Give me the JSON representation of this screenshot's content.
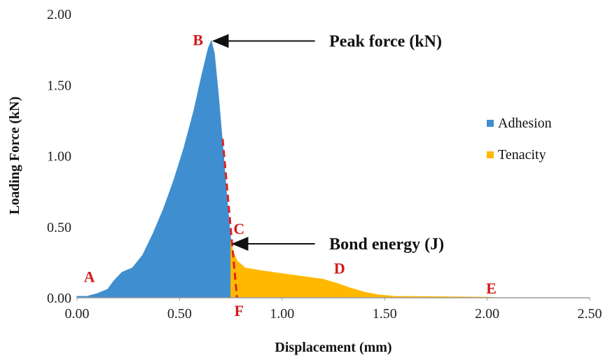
{
  "chart_data": {
    "type": "area",
    "title": "",
    "xlabel": "Displacement (mm)",
    "ylabel": "Loading Force (kN)",
    "xlim": [
      0,
      2.5
    ],
    "ylim": [
      0,
      2.0
    ],
    "x_ticks": [
      "0.00",
      "0.50",
      "1.00",
      "1.50",
      "2.00",
      "2.50"
    ],
    "y_ticks": [
      "0.00",
      "0.50",
      "1.00",
      "1.50",
      "2.00"
    ],
    "grid": false,
    "legend_position": "right",
    "series": [
      {
        "name": "Adhesion",
        "color": "#3f8fd0",
        "points": [
          [
            0.0,
            0.01
          ],
          [
            0.05,
            0.01
          ],
          [
            0.1,
            0.03
          ],
          [
            0.15,
            0.06
          ],
          [
            0.18,
            0.12
          ],
          [
            0.22,
            0.18
          ],
          [
            0.27,
            0.21
          ],
          [
            0.32,
            0.3
          ],
          [
            0.37,
            0.45
          ],
          [
            0.42,
            0.62
          ],
          [
            0.47,
            0.82
          ],
          [
            0.52,
            1.05
          ],
          [
            0.57,
            1.32
          ],
          [
            0.61,
            1.58
          ],
          [
            0.64,
            1.76
          ],
          [
            0.655,
            1.81
          ],
          [
            0.67,
            1.72
          ],
          [
            0.69,
            1.42
          ],
          [
            0.71,
            1.08
          ],
          [
            0.73,
            0.72
          ],
          [
            0.75,
            0.4
          ],
          [
            0.77,
            0.12
          ],
          [
            0.78,
            0.0
          ]
        ]
      },
      {
        "name": "Tenacity",
        "color": "#ffb800",
        "points": [
          [
            0.75,
            0.4
          ],
          [
            0.76,
            0.33
          ],
          [
            0.78,
            0.26
          ],
          [
            0.82,
            0.21
          ],
          [
            0.9,
            0.19
          ],
          [
            1.0,
            0.17
          ],
          [
            1.1,
            0.15
          ],
          [
            1.2,
            0.13
          ],
          [
            1.27,
            0.1
          ],
          [
            1.33,
            0.07
          ],
          [
            1.4,
            0.04
          ],
          [
            1.47,
            0.02
          ],
          [
            1.55,
            0.01
          ],
          [
            2.0,
            0.004
          ],
          [
            2.05,
            0.0
          ]
        ]
      }
    ],
    "bond_line": {
      "color": "#e02020",
      "points": [
        [
          0.71,
          1.12
        ],
        [
          0.78,
          0.0
        ]
      ]
    },
    "point_labels": [
      {
        "label": "A",
        "x": 0.06,
        "y": 0.15,
        "color": "#d31919"
      },
      {
        "label": "B",
        "x": 0.59,
        "y": 1.82,
        "color": "#d31919"
      },
      {
        "label": "C",
        "x": 0.79,
        "y": 0.49,
        "color": "#d31919"
      },
      {
        "label": "D",
        "x": 1.28,
        "y": 0.21,
        "color": "#d31919"
      },
      {
        "label": "E",
        "x": 2.02,
        "y": 0.07,
        "color": "#d31919"
      },
      {
        "label": "F",
        "x": 0.79,
        "y": -0.09,
        "color": "#d31919"
      }
    ],
    "annotations": [
      {
        "text": "Peak force (kN)",
        "target": [
          0.665,
          1.81
        ],
        "text_x": 1.23,
        "text_y": 1.81
      },
      {
        "text": "Bond energy (J)",
        "target": [
          0.76,
          0.38
        ],
        "text_x": 1.23,
        "text_y": 0.38
      }
    ]
  }
}
